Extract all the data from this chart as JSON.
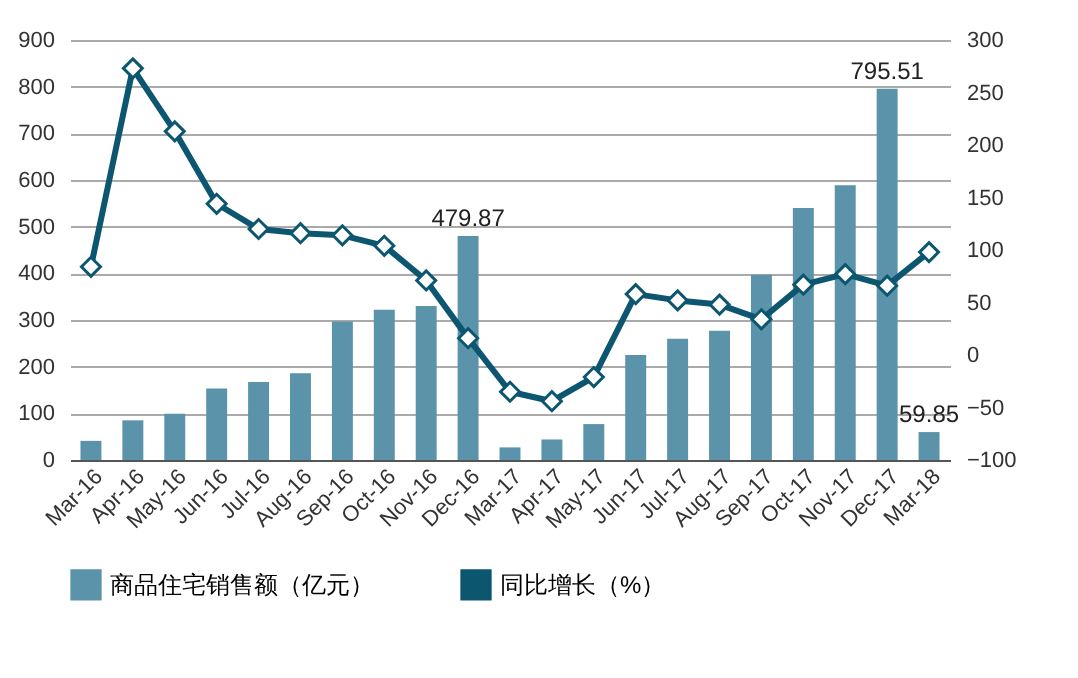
{
  "chart_data": {
    "type": "bar",
    "categories": [
      "Mar-16",
      "Apr-16",
      "May-16",
      "Jun-16",
      "Jul-16",
      "Aug-16",
      "Sep-16",
      "Oct-16",
      "Nov-16",
      "Dec-16",
      "Mar-17",
      "Apr-17",
      "May-17",
      "Jun-17",
      "Jul-17",
      "Aug-17",
      "Sep-17",
      "Oct-17",
      "Nov-17",
      "Dec-17",
      "Mar-18"
    ],
    "series": [
      {
        "name": "商品住宅销售额（亿元）",
        "color": "#5b93aa",
        "values": [
          41,
          85,
          99,
          153,
          167,
          186,
          297,
          322,
          330,
          479.87,
          27,
          44,
          77,
          225,
          260,
          277,
          397,
          540,
          589,
          795.51,
          59.85
        ],
        "value_labels": [
          null,
          null,
          null,
          null,
          null,
          null,
          null,
          null,
          null,
          "479.87",
          null,
          null,
          null,
          null,
          null,
          null,
          null,
          null,
          null,
          "795.51",
          "59.85"
        ]
      },
      {
        "name": "同比增长（%）",
        "type": "line",
        "axis": "y2",
        "color": "#0d5670",
        "values": [
          84,
          273,
          213,
          144,
          120,
          116,
          114,
          104,
          71,
          16,
          -35,
          -44,
          -21,
          58,
          52,
          48,
          34,
          67,
          77,
          66,
          98
        ]
      }
    ],
    "ylim": [
      0,
      900
    ],
    "yticks": [
      0,
      100,
      200,
      300,
      400,
      500,
      600,
      700,
      800,
      900
    ],
    "y2lim": [
      -100,
      300
    ],
    "y2ticks": [
      -100,
      -50,
      0,
      50,
      100,
      150,
      200,
      250,
      300
    ],
    "grid": "y",
    "legend": "bottom",
    "marker": "diamond",
    "line_style": "solid"
  }
}
